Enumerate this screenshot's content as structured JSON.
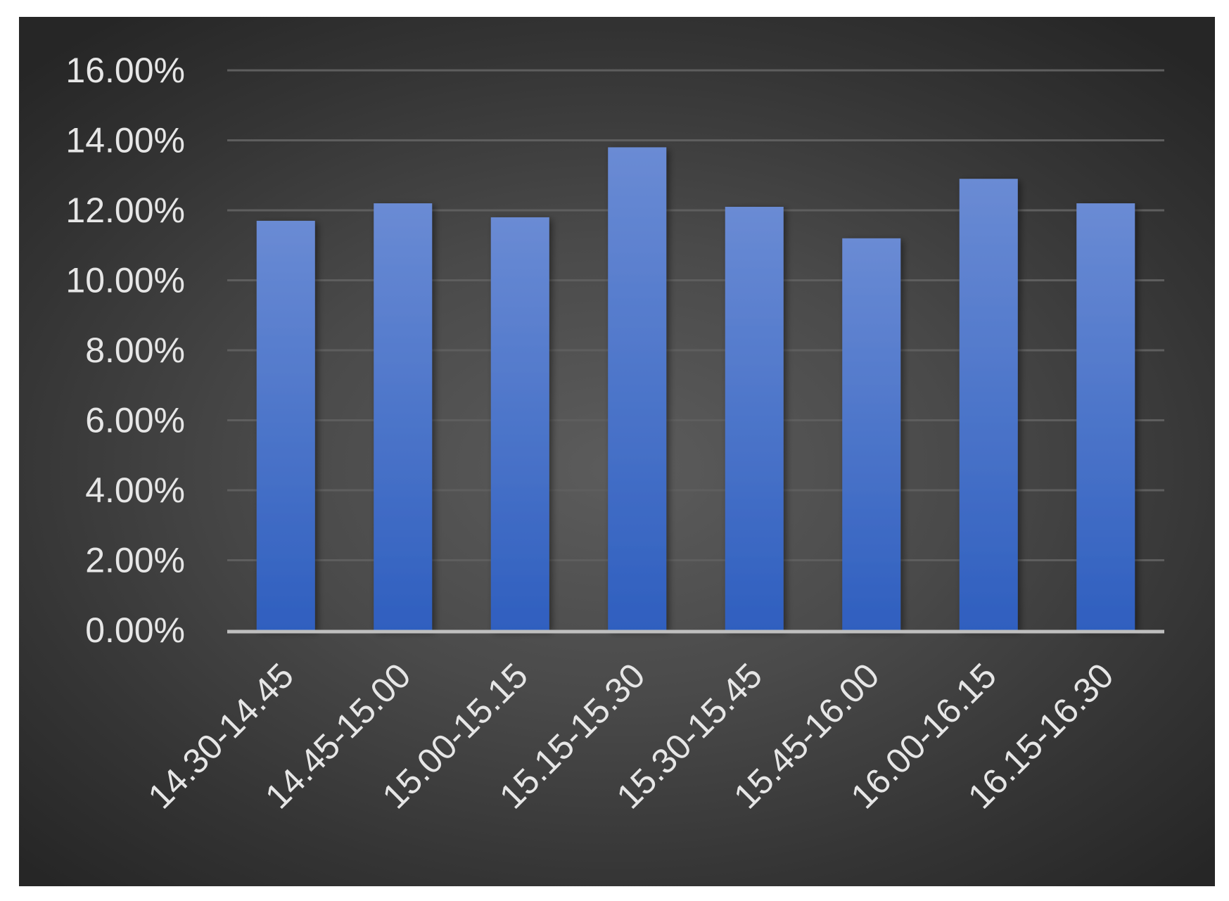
{
  "chart_data": {
    "type": "bar",
    "title": "",
    "xlabel": "",
    "ylabel": "",
    "categories": [
      "14.30-14.45",
      "14.45-15.00",
      "15.00-15.15",
      "15.15-15.30",
      "15.30-15.45",
      "15.45-16.00",
      "16.00-16.15",
      "16.15-16.30"
    ],
    "series": [
      {
        "values": [
          11.7,
          12.2,
          11.8,
          13.8,
          12.1,
          11.2,
          12.9,
          12.2
        ]
      }
    ],
    "ylim": [
      0,
      16
    ],
    "yticks": [
      "0.00%",
      "2.00%",
      "4.00%",
      "6.00%",
      "8.00%",
      "10.00%",
      "12.00%",
      "14.00%",
      "16.00%"
    ],
    "grid": true,
    "legend": "none",
    "colors": {
      "bar_top": "#6a8bd4",
      "bar_bottom": "#2f5fbf",
      "gridline": "#5e5e5e",
      "axis_line": "#bfbfbf",
      "text": "#e6e6e6"
    }
  }
}
